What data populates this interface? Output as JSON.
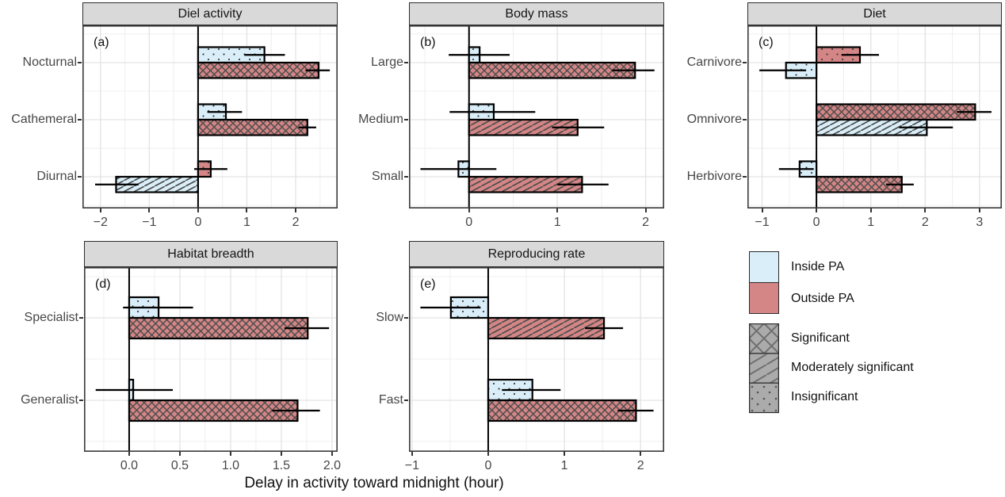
{
  "figure": {
    "x_axis_title": "Delay in activity toward midnight (hour)",
    "colors": {
      "groups": {
        "Inside PA": "#d9eef8",
        "Outside PA": "#d48585"
      },
      "strip_bg": "#d9d9d9",
      "grid_major": "#e3e3e3",
      "grid_minor": "#f0f0f0",
      "axis_text": "#474747",
      "bar_border": "#000000",
      "pattern_line": "#4d4d4d",
      "legend_pattern_fill": "#ababab"
    }
  },
  "legend": {
    "fill_items": [
      {
        "label": "Inside PA",
        "color": "#d9eef8"
      },
      {
        "label": "Outside PA",
        "color": "#d48585"
      }
    ],
    "pattern_items": [
      {
        "label": "Significant",
        "pattern": "significant"
      },
      {
        "label": "Moderately significant",
        "pattern": "moderate"
      },
      {
        "label": "Insignificant",
        "pattern": "insignificant"
      }
    ]
  },
  "chart_data": [
    {
      "id": "a",
      "tag": "(a)",
      "title": "Diel activity",
      "type": "bar",
      "orientation": "horizontal",
      "xlabel": "Delay in activity toward midnight (hour)",
      "axis": {
        "xlim": [
          -2.37,
          2.86
        ],
        "ticks": [
          -2,
          -1,
          0,
          1,
          2
        ],
        "decimals": 0
      },
      "rows": [
        {
          "label": "Nocturnal",
          "bars": [
            {
              "group": "Inside PA",
              "value": 1.36,
              "ci": [
                0.95,
                1.78
              ],
              "significance": "Insignificant"
            },
            {
              "group": "Outside PA",
              "value": 2.47,
              "ci": [
                2.2,
                2.7
              ],
              "significance": "Significant"
            }
          ]
        },
        {
          "label": "Cathemeral",
          "bars": [
            {
              "group": "Inside PA",
              "value": 0.57,
              "ci": [
                0.19,
                0.9
              ],
              "significance": "Insignificant"
            },
            {
              "group": "Outside PA",
              "value": 2.24,
              "ci": [
                2.06,
                2.42
              ],
              "significance": "Significant"
            }
          ]
        },
        {
          "label": "Diurnal",
          "bars": [
            {
              "group": "Outside PA",
              "value": 0.26,
              "ci": [
                -0.08,
                0.6
              ],
              "significance": "Insignificant"
            },
            {
              "group": "Inside PA",
              "value": -1.68,
              "ci": [
                -2.11,
                -1.22
              ],
              "significance": "Moderately significant"
            }
          ]
        }
      ]
    },
    {
      "id": "b",
      "tag": "(b)",
      "title": "Body mass",
      "type": "bar",
      "orientation": "horizontal",
      "axis": {
        "xlim": [
          -0.68,
          2.21
        ],
        "ticks": [
          0,
          1,
          2
        ],
        "decimals": 0
      },
      "rows": [
        {
          "label": "Large",
          "bars": [
            {
              "group": "Inside PA",
              "value": 0.12,
              "ci": [
                -0.23,
                0.46
              ],
              "significance": "Insignificant"
            },
            {
              "group": "Outside PA",
              "value": 1.88,
              "ci": [
                1.62,
                2.1
              ],
              "significance": "Significant"
            }
          ]
        },
        {
          "label": "Medium",
          "bars": [
            {
              "group": "Inside PA",
              "value": 0.28,
              "ci": [
                -0.22,
                0.75
              ],
              "significance": "Insignificant"
            },
            {
              "group": "Outside PA",
              "value": 1.23,
              "ci": [
                0.94,
                1.53
              ],
              "significance": "Moderately significant"
            }
          ]
        },
        {
          "label": "Small",
          "bars": [
            {
              "group": "Inside PA",
              "value": -0.12,
              "ci": [
                -0.55,
                0.31
              ],
              "significance": "Insignificant"
            },
            {
              "group": "Outside PA",
              "value": 1.28,
              "ci": [
                1.0,
                1.58
              ],
              "significance": "Moderately significant"
            }
          ]
        }
      ]
    },
    {
      "id": "c",
      "tag": "(c)",
      "title": "Diet",
      "type": "bar",
      "orientation": "horizontal",
      "axis": {
        "xlim": [
          -1.27,
          3.41
        ],
        "ticks": [
          -1,
          0,
          1,
          2,
          3
        ],
        "decimals": 0
      },
      "rows": [
        {
          "label": "Carnivore",
          "bars": [
            {
              "group": "Outside PA",
              "value": 0.8,
              "ci": [
                0.46,
                1.15
              ],
              "significance": "Insignificant"
            },
            {
              "group": "Inside PA",
              "value": -0.56,
              "ci": [
                -1.05,
                -0.19
              ],
              "significance": "Insignificant"
            }
          ]
        },
        {
          "label": "Omnivore",
          "bars": [
            {
              "group": "Outside PA",
              "value": 2.92,
              "ci": [
                2.58,
                3.22
              ],
              "significance": "Significant"
            },
            {
              "group": "Inside PA",
              "value": 2.03,
              "ci": [
                1.52,
                2.51
              ],
              "significance": "Moderately significant"
            }
          ]
        },
        {
          "label": "Herbivore",
          "bars": [
            {
              "group": "Inside PA",
              "value": -0.31,
              "ci": [
                -0.69,
                -0.05
              ],
              "significance": "Insignificant"
            },
            {
              "group": "Outside PA",
              "value": 1.57,
              "ci": [
                1.28,
                1.79
              ],
              "significance": "Significant"
            }
          ]
        }
      ]
    },
    {
      "id": "d",
      "tag": "(d)",
      "title": "Habitat breadth",
      "type": "bar",
      "orientation": "horizontal",
      "axis": {
        "xlim": [
          -0.445,
          2.055
        ],
        "ticks": [
          0,
          0.5,
          1,
          1.5,
          2
        ],
        "decimals": 1
      },
      "rows": [
        {
          "label": "Specialist",
          "bars": [
            {
              "group": "Inside PA",
              "value": 0.29,
              "ci": [
                -0.06,
                0.63
              ],
              "significance": "Insignificant"
            },
            {
              "group": "Outside PA",
              "value": 1.76,
              "ci": [
                1.53,
                1.97
              ],
              "significance": "Significant"
            }
          ]
        },
        {
          "label": "Generalist",
          "bars": [
            {
              "group": "Inside PA",
              "value": 0.04,
              "ci": [
                -0.33,
                0.43
              ],
              "significance": "Insignificant"
            },
            {
              "group": "Outside PA",
              "value": 1.66,
              "ci": [
                1.41,
                1.88
              ],
              "significance": "Significant"
            }
          ]
        }
      ]
    },
    {
      "id": "e",
      "tag": "(e)",
      "title": "Reproducing rate",
      "type": "bar",
      "orientation": "horizontal",
      "axis": {
        "xlim": [
          -1.04,
          2.31
        ],
        "ticks": [
          -1,
          0,
          1,
          2
        ],
        "decimals": 0
      },
      "rows": [
        {
          "label": "Slow",
          "bars": [
            {
              "group": "Inside PA",
              "value": -0.49,
              "ci": [
                -0.89,
                -0.1
              ],
              "significance": "Insignificant"
            },
            {
              "group": "Outside PA",
              "value": 1.52,
              "ci": [
                1.27,
                1.77
              ],
              "significance": "Moderately significant"
            }
          ]
        },
        {
          "label": "Fast",
          "bars": [
            {
              "group": "Inside PA",
              "value": 0.58,
              "ci": [
                0.18,
                0.95
              ],
              "significance": "Insignificant"
            },
            {
              "group": "Outside PA",
              "value": 1.94,
              "ci": [
                1.7,
                2.17
              ],
              "significance": "Significant"
            }
          ]
        }
      ]
    }
  ]
}
